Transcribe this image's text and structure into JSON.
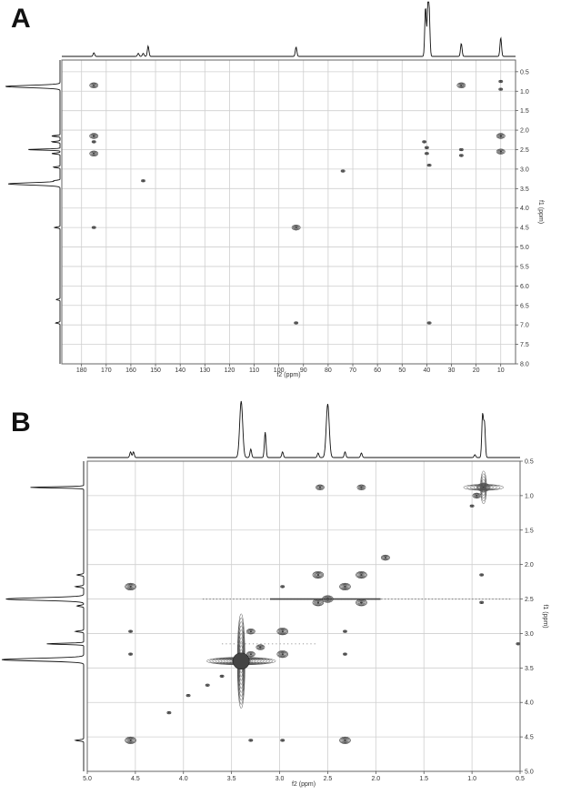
{
  "chart_data": [
    {
      "panel": "A",
      "type": "scatter",
      "x_label": "f2 (ppm)",
      "y_label": "f1 (ppm)",
      "xlim": [
        188,
        4
      ],
      "ylim": [
        0.2,
        8.0
      ],
      "x_ticks": [
        180,
        170,
        160,
        150,
        140,
        130,
        120,
        110,
        100,
        90,
        80,
        70,
        60,
        50,
        40,
        30,
        20,
        10
      ],
      "y_ticks": [
        "0.5",
        "1.0",
        "1.5",
        "2.0",
        "2.5",
        "3.0",
        "3.5",
        "4.0",
        "4.5",
        "5.0",
        "5.5",
        "6.0",
        "6.5",
        "7.0",
        "7.5",
        "8.0"
      ],
      "grid": true,
      "top_projection_peaks": [
        {
          "x": 175,
          "h": 0.07
        },
        {
          "x": 157,
          "h": 0.06
        },
        {
          "x": 155,
          "h": 0.06
        },
        {
          "x": 153,
          "h": 0.2
        },
        {
          "x": 93,
          "h": 0.18
        },
        {
          "x": 40.5,
          "h": 0.95
        },
        {
          "x": 39.5,
          "h": 1.0
        },
        {
          "x": 39,
          "h": 0.7
        },
        {
          "x": 26,
          "h": 0.25
        },
        {
          "x": 10,
          "h": 0.36
        }
      ],
      "side_projection_peaks": [
        {
          "y": 0.88,
          "h": 1.0
        },
        {
          "y": 2.15,
          "h": 0.15
        },
        {
          "y": 2.3,
          "h": 0.15
        },
        {
          "y": 2.5,
          "h": 0.6
        },
        {
          "y": 2.6,
          "h": 0.15
        },
        {
          "y": 2.95,
          "h": 0.12
        },
        {
          "y": 3.3,
          "h": 0.1
        },
        {
          "y": 3.38,
          "h": 0.95
        },
        {
          "y": 4.5,
          "h": 0.1
        },
        {
          "y": 6.35,
          "h": 0.07
        },
        {
          "y": 6.95,
          "h": 0.08
        }
      ],
      "cross_peaks": [
        {
          "x": 175,
          "y": 0.85,
          "size": 2
        },
        {
          "x": 26,
          "y": 0.85,
          "size": 2
        },
        {
          "x": 10,
          "y": 0.75,
          "size": 1
        },
        {
          "x": 10,
          "y": 0.95,
          "size": 1
        },
        {
          "x": 175,
          "y": 2.15,
          "size": 2
        },
        {
          "x": 175,
          "y": 2.3,
          "size": 1
        },
        {
          "x": 175,
          "y": 2.6,
          "size": 2
        },
        {
          "x": 41,
          "y": 2.3,
          "size": 1
        },
        {
          "x": 40,
          "y": 2.45,
          "size": 1
        },
        {
          "x": 40,
          "y": 2.6,
          "size": 1
        },
        {
          "x": 39,
          "y": 2.9,
          "size": 1
        },
        {
          "x": 26,
          "y": 2.5,
          "size": 1
        },
        {
          "x": 26,
          "y": 2.65,
          "size": 1
        },
        {
          "x": 10,
          "y": 2.15,
          "size": 2
        },
        {
          "x": 10,
          "y": 2.55,
          "size": 2
        },
        {
          "x": 74,
          "y": 3.05,
          "size": 1
        },
        {
          "x": 155,
          "y": 3.3,
          "size": 1
        },
        {
          "x": 175,
          "y": 4.5,
          "size": 1
        },
        {
          "x": 93,
          "y": 4.5,
          "size": 2
        },
        {
          "x": 93,
          "y": 6.95,
          "size": 1
        },
        {
          "x": 39,
          "y": 6.95,
          "size": 1
        }
      ]
    },
    {
      "panel": "B",
      "type": "scatter",
      "x_label": "f2 (ppm)",
      "y_label": "f1 (ppm)",
      "xlim": [
        5.0,
        0.5
      ],
      "ylim": [
        0.5,
        5.0
      ],
      "x_ticks": [
        "5.0",
        "4.5",
        "4.0",
        "3.5",
        "3.0",
        "2.5",
        "2.0",
        "1.5",
        "1.0",
        "0.5"
      ],
      "y_ticks": [
        "0.5",
        "1.0",
        "1.5",
        "2.0",
        "2.5",
        "3.0",
        "3.5",
        "4.0",
        "4.5",
        "5.0"
      ],
      "grid": true,
      "top_projection_peaks": [
        {
          "x": 4.55,
          "h": 0.1
        },
        {
          "x": 4.52,
          "h": 0.1
        },
        {
          "x": 3.4,
          "h": 1.0
        },
        {
          "x": 3.3,
          "h": 0.15
        },
        {
          "x": 3.15,
          "h": 0.45
        },
        {
          "x": 2.97,
          "h": 0.1
        },
        {
          "x": 2.6,
          "h": 0.08
        },
        {
          "x": 2.5,
          "h": 0.95
        },
        {
          "x": 2.32,
          "h": 0.1
        },
        {
          "x": 2.15,
          "h": 0.08
        },
        {
          "x": 0.97,
          "h": 0.05
        },
        {
          "x": 0.89,
          "h": 0.75
        },
        {
          "x": 0.87,
          "h": 0.6
        }
      ],
      "side_projection_peaks": [
        {
          "y": 0.88,
          "h": 0.65
        },
        {
          "y": 2.15,
          "h": 0.08
        },
        {
          "y": 2.32,
          "h": 0.1
        },
        {
          "y": 2.5,
          "h": 0.95
        },
        {
          "y": 2.6,
          "h": 0.08
        },
        {
          "y": 2.97,
          "h": 0.1
        },
        {
          "y": 3.15,
          "h": 0.45
        },
        {
          "y": 3.38,
          "h": 1.0
        },
        {
          "y": 4.55,
          "h": 0.1
        }
      ],
      "cross_peaks": [
        {
          "x": 0.88,
          "y": 0.88,
          "size": 4
        },
        {
          "x": 0.95,
          "y": 1.0,
          "size": 2
        },
        {
          "x": 1.0,
          "y": 1.15,
          "size": 1
        },
        {
          "x": 2.58,
          "y": 0.88,
          "size": 2
        },
        {
          "x": 2.15,
          "y": 0.88,
          "size": 2
        },
        {
          "x": 0.9,
          "y": 2.15,
          "size": 1
        },
        {
          "x": 0.9,
          "y": 2.55,
          "size": 1
        },
        {
          "x": 1.9,
          "y": 1.9,
          "size": 2
        },
        {
          "x": 2.15,
          "y": 2.15,
          "size": 3
        },
        {
          "x": 2.6,
          "y": 2.15,
          "size": 3
        },
        {
          "x": 2.32,
          "y": 2.32,
          "size": 3
        },
        {
          "x": 2.6,
          "y": 2.55,
          "size": 3
        },
        {
          "x": 2.15,
          "y": 2.55,
          "size": 3
        },
        {
          "x": 2.5,
          "y": 2.5,
          "size": 3
        },
        {
          "x": 4.55,
          "y": 2.32,
          "size": 3
        },
        {
          "x": 2.97,
          "y": 2.32,
          "size": 1
        },
        {
          "x": 3.3,
          "y": 2.97,
          "size": 2
        },
        {
          "x": 2.97,
          "y": 2.97,
          "size": 3
        },
        {
          "x": 4.55,
          "y": 2.97,
          "size": 1
        },
        {
          "x": 2.32,
          "y": 2.97,
          "size": 1
        },
        {
          "x": 3.3,
          "y": 3.3,
          "size": 2
        },
        {
          "x": 2.97,
          "y": 3.3,
          "size": 3
        },
        {
          "x": 4.55,
          "y": 3.3,
          "size": 1
        },
        {
          "x": 2.32,
          "y": 3.3,
          "size": 1
        },
        {
          "x": 3.2,
          "y": 3.2,
          "size": 2
        },
        {
          "x": 3.4,
          "y": 3.4,
          "size": 6
        },
        {
          "x": 3.6,
          "y": 3.62,
          "size": 1
        },
        {
          "x": 3.75,
          "y": 3.75,
          "size": 1
        },
        {
          "x": 3.95,
          "y": 3.9,
          "size": 1
        },
        {
          "x": 4.15,
          "y": 4.15,
          "size": 1
        },
        {
          "x": 4.55,
          "y": 4.55,
          "size": 3
        },
        {
          "x": 3.3,
          "y": 4.55,
          "size": 1
        },
        {
          "x": 2.97,
          "y": 4.55,
          "size": 1
        },
        {
          "x": 2.32,
          "y": 4.55,
          "size": 3
        },
        {
          "x": 0.52,
          "y": 3.15,
          "size": 1
        }
      ]
    }
  ],
  "figure": {
    "labels": [
      "A",
      "B"
    ]
  }
}
